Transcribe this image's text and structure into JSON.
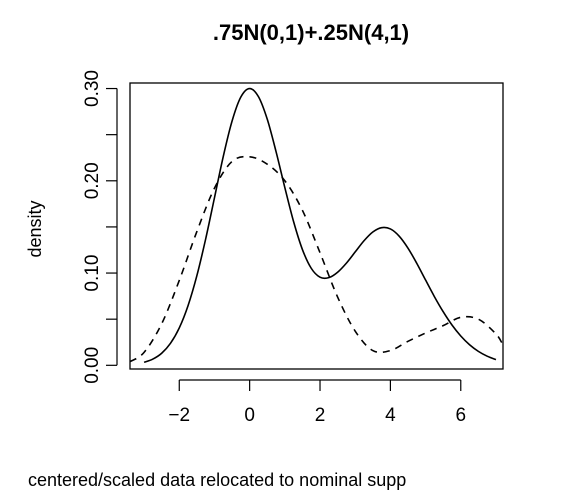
{
  "chart_data": {
    "type": "line",
    "title": ".75N(0,1)+.25N(4,1)",
    "xlabel": "centered/scaled data relocated to nominal supp",
    "ylabel": "density",
    "xlim": [
      -3.4,
      7.2
    ],
    "ylim": [
      -0.004,
      0.306
    ],
    "x_ticks": [
      {
        "value": -2,
        "label": "−2"
      },
      {
        "value": 0,
        "label": "0"
      },
      {
        "value": 2,
        "label": "2"
      },
      {
        "value": 4,
        "label": "4"
      },
      {
        "value": 6,
        "label": "6"
      }
    ],
    "y_ticks": [
      {
        "value": 0.0,
        "label": "0.00"
      },
      {
        "value": 0.05,
        "label": ""
      },
      {
        "value": 0.1,
        "label": "0.10"
      },
      {
        "value": 0.15,
        "label": ""
      },
      {
        "value": 0.2,
        "label": "0.20"
      },
      {
        "value": 0.25,
        "label": ""
      },
      {
        "value": 0.3,
        "label": "0.30"
      }
    ],
    "grid": false,
    "legend": "none",
    "series": [
      {
        "style": "solid",
        "color": "#000000",
        "x": [
          -3.0,
          -2.75,
          -2.5,
          -2.25,
          -2.0,
          -1.75,
          -1.5,
          -1.25,
          -1.0,
          -0.75,
          -0.5,
          -0.25,
          0.0,
          0.25,
          0.5,
          0.75,
          1.0,
          1.25,
          1.5,
          1.75,
          2.0,
          2.25,
          2.5,
          2.75,
          3.0,
          3.25,
          3.5,
          3.75,
          4.0,
          4.25,
          4.5,
          4.75,
          5.0,
          5.25,
          5.5,
          5.75,
          6.0,
          6.25,
          6.5,
          6.75,
          7.0
        ],
        "y": [
          0.0033,
          0.0068,
          0.0131,
          0.0238,
          0.0405,
          0.0647,
          0.0971,
          0.1369,
          0.1815,
          0.2263,
          0.2647,
          0.2908,
          0.3,
          0.2912,
          0.2668,
          0.2317,
          0.1927,
          0.1556,
          0.1255,
          0.1052,
          0.0955,
          0.095,
          0.1009,
          0.1108,
          0.1229,
          0.135,
          0.1445,
          0.1492,
          0.1478,
          0.14,
          0.127,
          0.1105,
          0.0924,
          0.0745,
          0.0581,
          0.0437,
          0.0318,
          0.0223,
          0.0151,
          0.0099,
          0.0062
        ]
      },
      {
        "style": "dashed",
        "color": "#000000",
        "x": [
          -3.4,
          -3.0,
          -2.5,
          -2.0,
          -1.5,
          -1.0,
          -0.5,
          0.0,
          0.5,
          1.0,
          1.5,
          2.0,
          2.5,
          3.0,
          3.5,
          4.0,
          4.5,
          5.0,
          5.5,
          6.0,
          6.5,
          7.0,
          7.2
        ],
        "y": [
          0.004,
          0.014,
          0.045,
          0.092,
          0.145,
          0.192,
          0.221,
          0.226,
          0.218,
          0.2,
          0.168,
          0.122,
          0.074,
          0.037,
          0.016,
          0.016,
          0.026,
          0.035,
          0.043,
          0.052,
          0.05,
          0.034,
          0.022
        ]
      }
    ]
  }
}
